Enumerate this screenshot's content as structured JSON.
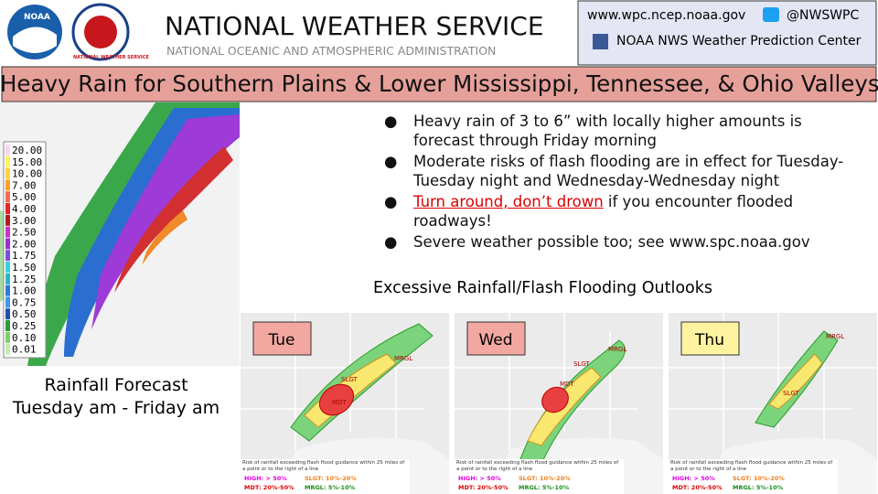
{
  "header": {
    "logo_left": "NOAA",
    "logo_right": "NATIONAL WEATHER SERVICE",
    "title": "NATIONAL WEATHER SERVICE",
    "subtitle": "NATIONAL OCEANIC AND ATMOSPHERIC ADMINISTRATION"
  },
  "contact": {
    "website": "www.wpc.ncep.noaa.gov",
    "twitter": "@NWSWPC",
    "facebook": "NOAA NWS Weather Prediction Center"
  },
  "banner": "Heavy Rain for Southern Plains & Lower Mississippi, Tennessee, & Ohio Valleys",
  "bullets": [
    {
      "text": "Heavy rain of 3 to 6” with locally higher amounts is forecast through Friday morning"
    },
    {
      "text": "Moderate risks of flash flooding are in effect for Tuesday-Tuesday night and Wednesday-Wednesday night"
    },
    {
      "link": "Turn around, don’t drown",
      "text": " if you encounter flooded roadways!"
    },
    {
      "text": "Severe weather possible too; see www.spc.noaa.gov"
    }
  ],
  "rainfall": {
    "legend": [
      "20.00",
      "15.00",
      "10.00",
      "7.00",
      "5.00",
      "4.00",
      "3.00",
      "2.50",
      "2.00",
      "1.75",
      "1.50",
      "1.25",
      "1.00",
      "0.75",
      "0.50",
      "0.25",
      "0.10",
      "0.01"
    ],
    "caption": [
      "Rainfall Forecast",
      "Tuesday am - Friday am"
    ]
  },
  "outlooks": {
    "title": "Excessive Rainfall/Flash Flooding Outlooks",
    "panels": [
      {
        "day": "Tue",
        "labels": [
          "MDT",
          "SLGT",
          "MRGL"
        ]
      },
      {
        "day": "Wed",
        "labels": [
          "MDT",
          "SLGT",
          "MRGL"
        ]
      },
      {
        "day": "Thu",
        "labels": [
          "SLGT",
          "MRGL"
        ]
      }
    ],
    "note": "Risk of rainfall exceeding flash flood guidance within 25 miles of a point or to the right of a line",
    "categories": [
      "HIGH: > 50%",
      "SLGT: 10%-20%",
      "MDT: 20%-50%",
      "MRGL: 5%-10%"
    ]
  }
}
